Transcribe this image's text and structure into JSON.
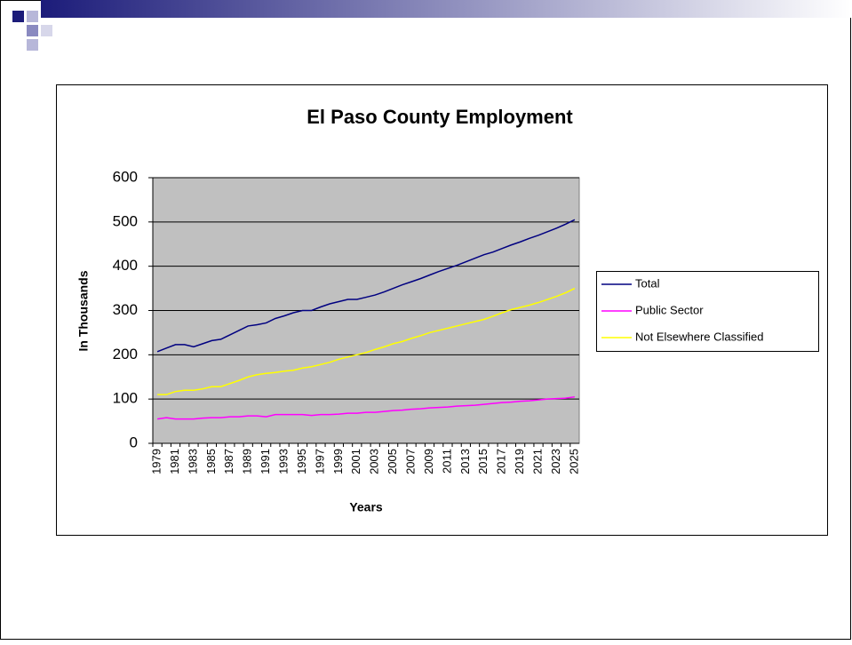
{
  "chart_data": {
    "type": "line",
    "title": "El Paso County Employment",
    "x_label": "Years",
    "y_label": "In Thousands",
    "categories": [
      "1979",
      null,
      "1981",
      null,
      "1983",
      null,
      "1985",
      null,
      "1987",
      null,
      "1989",
      null,
      "1991",
      null,
      "1993",
      null,
      "1995",
      null,
      "1997",
      null,
      "1999",
      null,
      "2001",
      null,
      "2003",
      null,
      "2005",
      null,
      "2007",
      null,
      "2009",
      null,
      "2011",
      null,
      "2013",
      null,
      "2015",
      null,
      "2017",
      null,
      "2019",
      null,
      "2021",
      null,
      "2023",
      null,
      "2025"
    ],
    "series": [
      {
        "name": "Total",
        "color": "#000080",
        "values": [
          207,
          215,
          223,
          223,
          218,
          225,
          232,
          235,
          245,
          255,
          265,
          268,
          272,
          282,
          288,
          295,
          300,
          300,
          308,
          315,
          320,
          325,
          325,
          330,
          335,
          342,
          350,
          358,
          365,
          372,
          380,
          388,
          395,
          402,
          410,
          418,
          426,
          432,
          440,
          448,
          455,
          463,
          470,
          478,
          486,
          495,
          505
        ]
      },
      {
        "name": "Public Sector",
        "color": "#ff00ff",
        "values": [
          55,
          58,
          55,
          55,
          55,
          57,
          58,
          58,
          60,
          60,
          62,
          62,
          60,
          65,
          65,
          65,
          65,
          63,
          65,
          65,
          66,
          68,
          68,
          70,
          70,
          72,
          74,
          75,
          77,
          78,
          80,
          81,
          82,
          84,
          85,
          86,
          88,
          90,
          92,
          93,
          95,
          96,
          98,
          100,
          101,
          102,
          105
        ]
      },
      {
        "name": "Not Elsewhere Classified",
        "color": "#ffff00",
        "values": [
          110,
          110,
          117,
          120,
          120,
          123,
          128,
          128,
          135,
          142,
          150,
          155,
          158,
          160,
          163,
          165,
          170,
          173,
          178,
          183,
          190,
          195,
          200,
          205,
          212,
          218,
          225,
          230,
          237,
          243,
          250,
          255,
          260,
          265,
          270,
          275,
          280,
          287,
          295,
          302,
          307,
          312,
          318,
          325,
          332,
          340,
          350
        ]
      }
    ],
    "ylim": [
      0,
      600
    ],
    "yticks": [
      0,
      100,
      200,
      300,
      400,
      500,
      600
    ],
    "grid": true,
    "legend": "right",
    "plot_background": "#c0c0c0"
  }
}
